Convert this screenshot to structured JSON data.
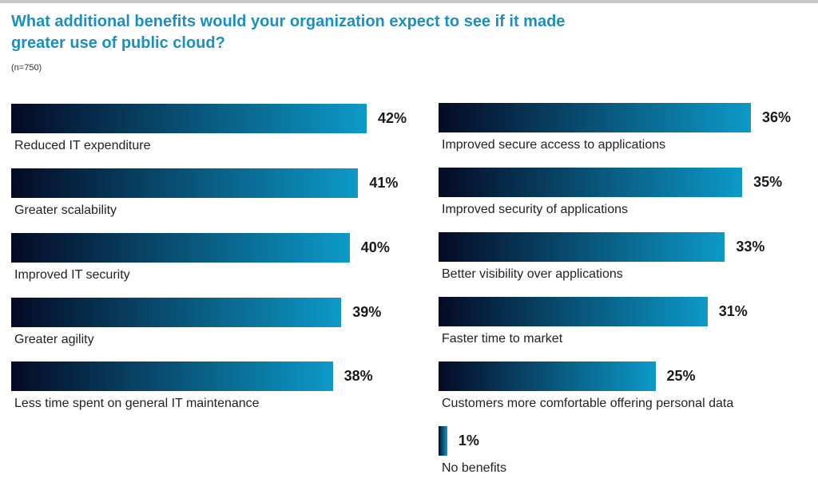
{
  "title": "What additional benefits would your organization expect to see if it made greater use of public cloud?",
  "subtitle": "(n=750)",
  "colors": {
    "bar_start": "#050a24",
    "bar_end": "#0c9ac8",
    "title": "#1a8fc0"
  },
  "chart_data": {
    "type": "bar",
    "orientation": "horizontal",
    "value_suffix": "%",
    "columns": [
      {
        "categories": [
          "Reduced IT expenditure",
          "Greater scalability",
          "Improved IT security",
          "Greater agility",
          "Less time spent on general IT maintenance"
        ],
        "values": [
          42,
          41,
          40,
          39,
          38
        ],
        "labels": [
          "42%",
          "41%",
          "40%",
          "39%",
          "38%"
        ]
      },
      {
        "categories": [
          "Improved secure access to applications",
          "Improved security of applications",
          "Better visibility over applications",
          "Faster time to market",
          "Customers more comfortable offering personal data",
          "No benefits"
        ],
        "values": [
          36,
          35,
          33,
          31,
          25,
          1
        ],
        "labels": [
          "36%",
          "35%",
          "33%",
          "31%",
          "25%",
          "1%"
        ]
      }
    ]
  }
}
